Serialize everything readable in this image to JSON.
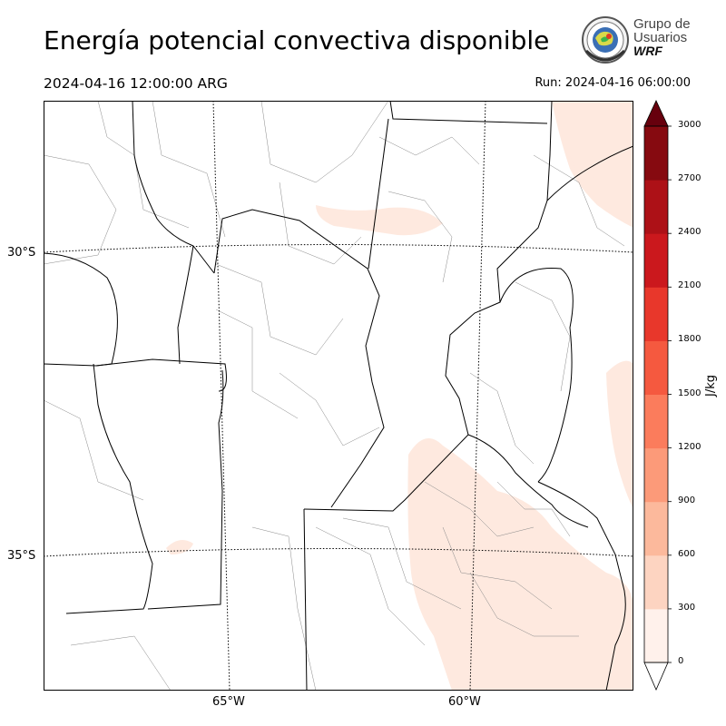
{
  "title": "Energía potencial convectiva disponible",
  "valid_time": "2024-04-16 12:00:00 ARG",
  "run_time": "Run: 2024-04-16 06:00:00",
  "logo": {
    "line1": "Grupo de",
    "line2": "Usuarios",
    "line3": "WRF"
  },
  "map": {
    "lat_labels": [
      "30°S",
      "35°S"
    ],
    "lon_labels": [
      "65°W",
      "60°W"
    ],
    "fill_color": "#fee9df",
    "border_color": "#000000",
    "county_color": "#888888"
  },
  "colorbar": {
    "unit": "J/kg",
    "ticks": [
      "0",
      "300",
      "600",
      "900",
      "1200",
      "1500",
      "1800",
      "2100",
      "2400",
      "2700",
      "3000"
    ],
    "colors": [
      "#fff1eb",
      "#fdd4c1",
      "#fcb99c",
      "#fc9a79",
      "#fb7c5c",
      "#f5593f",
      "#e8372b",
      "#cb181d",
      "#ad1117",
      "#860a10"
    ],
    "under_color": "#ffffff",
    "over_color": "#67000d"
  }
}
